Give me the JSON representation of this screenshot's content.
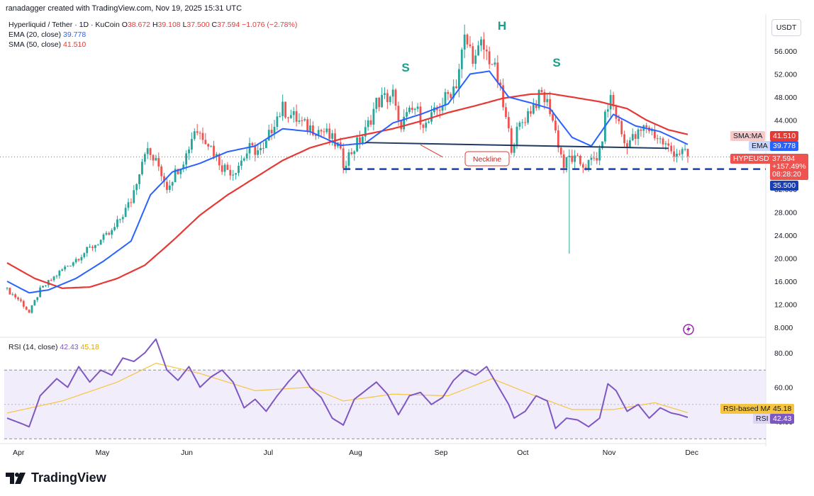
{
  "header": "ranadagger created with TradingView.com, Nov 19, 2025 15:31 UTC",
  "symbol": {
    "name": "Hyperliquid / Tether · 1D · KuCoin",
    "open_label": "O",
    "open": "38.672",
    "high_label": "H",
    "high": "39.108",
    "low_label": "L",
    "low": "37.500",
    "close_label": "C",
    "close": "37.594",
    "change": "−1.076 (−2.78%)"
  },
  "indicators": {
    "ema_label": "EMA (20, close)",
    "ema_value": "39.778",
    "sma_label": "SMA (50, close)",
    "sma_value": "41.510",
    "rsi_label": "RSI (14, close)",
    "rsi_value": "42.43",
    "rsi_ma_value": "45.18"
  },
  "price_tags": {
    "sma_tag": "SMA:MA",
    "sma": "41.510",
    "ema_tag": "EMA",
    "ema": "39.778",
    "sym_tag": "HYPEUSDT",
    "last": "37.594",
    "pct": "+157.49%",
    "countdown": "08:28:20",
    "support": "35.500",
    "rsi_ma_tag": "RSI-based MA",
    "rsi_ma": "45.18",
    "rsi_tag": "RSI",
    "rsi": "42.43"
  },
  "currency": "USDT",
  "annotations": {
    "s_left": "S",
    "head": "H",
    "s_right": "S",
    "neckline": "Neckline"
  },
  "brand": "TradingView",
  "colors": {
    "up": "#26a69a",
    "down": "#ef5350",
    "ema": "#2962ff",
    "sma": "#e53935",
    "neckline": "#1e3a5f",
    "support": "#1a3fb5",
    "rsi": "#7e57c2",
    "rsi_ma": "#f5c542"
  },
  "chart_data": [
    {
      "type": "candlestick",
      "title": "Hyperliquid / Tether · 1D · KuCoin",
      "x_tick_labels": [
        "Apr",
        "May",
        "Jun",
        "Jul",
        "Aug",
        "Sep",
        "Oct",
        "Nov",
        "Dec"
      ],
      "y_tick_labels": [
        "8.000",
        "12.000",
        "16.000",
        "20.000",
        "24.000",
        "28.000",
        "32.000",
        "36.000",
        "40.000",
        "44.000",
        "48.000",
        "52.000",
        "56.000"
      ],
      "ylim": [
        6,
        60
      ],
      "close_path": [
        [
          0,
          14.5
        ],
        [
          5,
          12.5
        ],
        [
          8,
          10.5
        ],
        [
          12,
          14.5
        ],
        [
          20,
          18
        ],
        [
          28,
          21
        ],
        [
          38,
          24.5
        ],
        [
          45,
          30
        ],
        [
          50,
          39
        ],
        [
          55,
          36
        ],
        [
          58,
          32.5
        ],
        [
          65,
          38
        ],
        [
          68,
          42.5
        ],
        [
          72,
          41
        ],
        [
          78,
          36
        ],
        [
          82,
          35
        ],
        [
          88,
          39
        ],
        [
          93,
          38.5
        ],
        [
          97,
          44
        ],
        [
          100,
          46
        ],
        [
          108,
          43
        ],
        [
          115,
          42
        ],
        [
          120,
          39.5
        ],
        [
          122,
          36.5
        ],
        [
          130,
          42
        ],
        [
          134,
          47
        ],
        [
          140,
          48.5
        ],
        [
          142,
          43
        ],
        [
          148,
          46
        ],
        [
          152,
          43
        ],
        [
          158,
          47
        ],
        [
          163,
          50.5
        ],
        [
          166,
          58
        ],
        [
          170,
          54.5
        ],
        [
          172,
          57
        ],
        [
          176,
          54
        ],
        [
          178,
          51
        ],
        [
          181,
          44
        ],
        [
          183,
          39.5
        ],
        [
          186,
          43
        ],
        [
          190,
          46
        ],
        [
          194,
          48.5
        ],
        [
          197,
          46
        ],
        [
          202,
          36
        ],
        [
          204,
          37.5
        ],
        [
          210,
          36
        ],
        [
          215,
          38
        ],
        [
          217,
          44.5
        ],
        [
          219,
          48
        ],
        [
          224,
          40
        ],
        [
          228,
          41
        ],
        [
          232,
          43
        ],
        [
          237,
          40.5
        ],
        [
          241,
          38.6
        ],
        [
          245,
          38.4
        ],
        [
          247,
          37.594
        ]
      ],
      "ema20_path": [
        [
          0,
          16
        ],
        [
          8,
          14
        ],
        [
          15,
          14.5
        ],
        [
          25,
          16.5
        ],
        [
          35,
          19.5
        ],
        [
          45,
          23
        ],
        [
          52,
          31
        ],
        [
          60,
          35
        ],
        [
          70,
          36.5
        ],
        [
          80,
          38.5
        ],
        [
          90,
          39.5
        ],
        [
          100,
          42.5
        ],
        [
          110,
          42
        ],
        [
          121,
          39.6
        ],
        [
          130,
          40
        ],
        [
          140,
          43.5
        ],
        [
          150,
          45
        ],
        [
          160,
          46.8
        ],
        [
          168,
          52
        ],
        [
          175,
          52.5
        ],
        [
          182,
          48
        ],
        [
          190,
          47
        ],
        [
          197,
          46
        ],
        [
          205,
          41
        ],
        [
          212,
          39.5
        ],
        [
          220,
          45
        ],
        [
          228,
          43
        ],
        [
          237,
          42
        ],
        [
          247,
          39.778
        ]
      ],
      "sma50_path": [
        [
          0,
          19.2
        ],
        [
          10,
          16.5
        ],
        [
          20,
          14.8
        ],
        [
          30,
          15
        ],
        [
          40,
          16.5
        ],
        [
          50,
          18.8
        ],
        [
          60,
          23
        ],
        [
          70,
          27.5
        ],
        [
          80,
          31
        ],
        [
          90,
          34
        ],
        [
          100,
          37
        ],
        [
          110,
          39.2
        ],
        [
          121,
          40.7
        ],
        [
          130,
          41.5
        ],
        [
          140,
          42.5
        ],
        [
          150,
          43.8
        ],
        [
          160,
          45.3
        ],
        [
          170,
          46.5
        ],
        [
          180,
          47.8
        ],
        [
          190,
          48.5
        ],
        [
          197,
          48.6
        ],
        [
          205,
          48
        ],
        [
          215,
          47.2
        ],
        [
          225,
          46
        ],
        [
          232,
          44
        ],
        [
          240,
          42.3
        ],
        [
          247,
          41.51
        ]
      ],
      "key_levels": {
        "neckline_start": [
          130,
          40.1
        ],
        "neckline_end": [
          240,
          39.1
        ],
        "support": 35.5,
        "wick_low": 20.8
      },
      "pattern": "head and shoulders"
    },
    {
      "type": "line",
      "title": "RSI (14, close)",
      "y_tick_labels": [
        "40.00",
        "60.00",
        "80.00"
      ],
      "ylim": [
        30,
        93
      ],
      "bands": [
        30,
        70
      ],
      "rsi_path": [
        [
          0,
          42
        ],
        [
          5,
          39
        ],
        [
          8,
          37
        ],
        [
          12,
          55
        ],
        [
          18,
          65
        ],
        [
          22,
          60
        ],
        [
          26,
          72
        ],
        [
          30,
          63
        ],
        [
          34,
          70
        ],
        [
          38,
          67
        ],
        [
          42,
          77
        ],
        [
          46,
          75
        ],
        [
          50,
          80
        ],
        [
          54,
          88
        ],
        [
          58,
          70
        ],
        [
          62,
          64
        ],
        [
          66,
          72
        ],
        [
          70,
          60
        ],
        [
          74,
          66
        ],
        [
          78,
          70
        ],
        [
          82,
          63
        ],
        [
          86,
          48
        ],
        [
          90,
          53
        ],
        [
          94,
          46
        ],
        [
          98,
          55
        ],
        [
          102,
          63
        ],
        [
          106,
          70
        ],
        [
          110,
          60
        ],
        [
          114,
          54
        ],
        [
          118,
          42
        ],
        [
          122,
          38
        ],
        [
          126,
          53
        ],
        [
          130,
          58
        ],
        [
          134,
          63
        ],
        [
          138,
          56
        ],
        [
          142,
          44
        ],
        [
          146,
          55
        ],
        [
          150,
          57
        ],
        [
          154,
          50
        ],
        [
          158,
          54
        ],
        [
          162,
          64
        ],
        [
          166,
          70
        ],
        [
          170,
          67
        ],
        [
          174,
          72
        ],
        [
          178,
          61
        ],
        [
          182,
          50
        ],
        [
          184,
          42
        ],
        [
          188,
          46
        ],
        [
          192,
          55
        ],
        [
          196,
          52
        ],
        [
          199,
          36
        ],
        [
          203,
          42
        ],
        [
          207,
          41
        ],
        [
          211,
          37
        ],
        [
          215,
          42
        ],
        [
          218,
          62
        ],
        [
          221,
          58
        ],
        [
          225,
          46
        ],
        [
          229,
          50
        ],
        [
          233,
          42
        ],
        [
          237,
          48
        ],
        [
          241,
          45
        ],
        [
          244,
          44
        ],
        [
          247,
          42.43
        ]
      ],
      "rsi_ma_path": [
        [
          0,
          45
        ],
        [
          20,
          52
        ],
        [
          40,
          63
        ],
        [
          54,
          74
        ],
        [
          70,
          68
        ],
        [
          90,
          58
        ],
        [
          110,
          60
        ],
        [
          122,
          52
        ],
        [
          140,
          56
        ],
        [
          160,
          55
        ],
        [
          176,
          65
        ],
        [
          190,
          56
        ],
        [
          205,
          47
        ],
        [
          220,
          47
        ],
        [
          235,
          51
        ],
        [
          247,
          45.18
        ]
      ]
    }
  ]
}
